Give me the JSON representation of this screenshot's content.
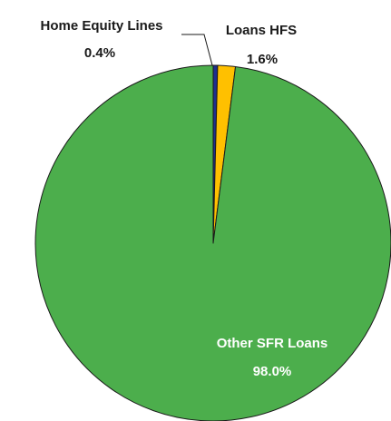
{
  "chart_data": {
    "type": "pie",
    "title": "",
    "slices": [
      {
        "name": "Home Equity Lines",
        "value": 0.4,
        "label": "0.4%",
        "color": "#1f2f8f"
      },
      {
        "name": "Loans HFS",
        "value": 1.6,
        "label": "1.6%",
        "color": "#ffc000"
      },
      {
        "name": "Other SFR Loans",
        "value": 98.0,
        "label": "98.0%",
        "color": "#4cae4c"
      }
    ],
    "legend": "none",
    "label_colors": {
      "Home Equity Lines": "#1a1a1a",
      "Loans HFS": "#1a1a1a",
      "Other SFR Loans": "#ffffff"
    }
  }
}
